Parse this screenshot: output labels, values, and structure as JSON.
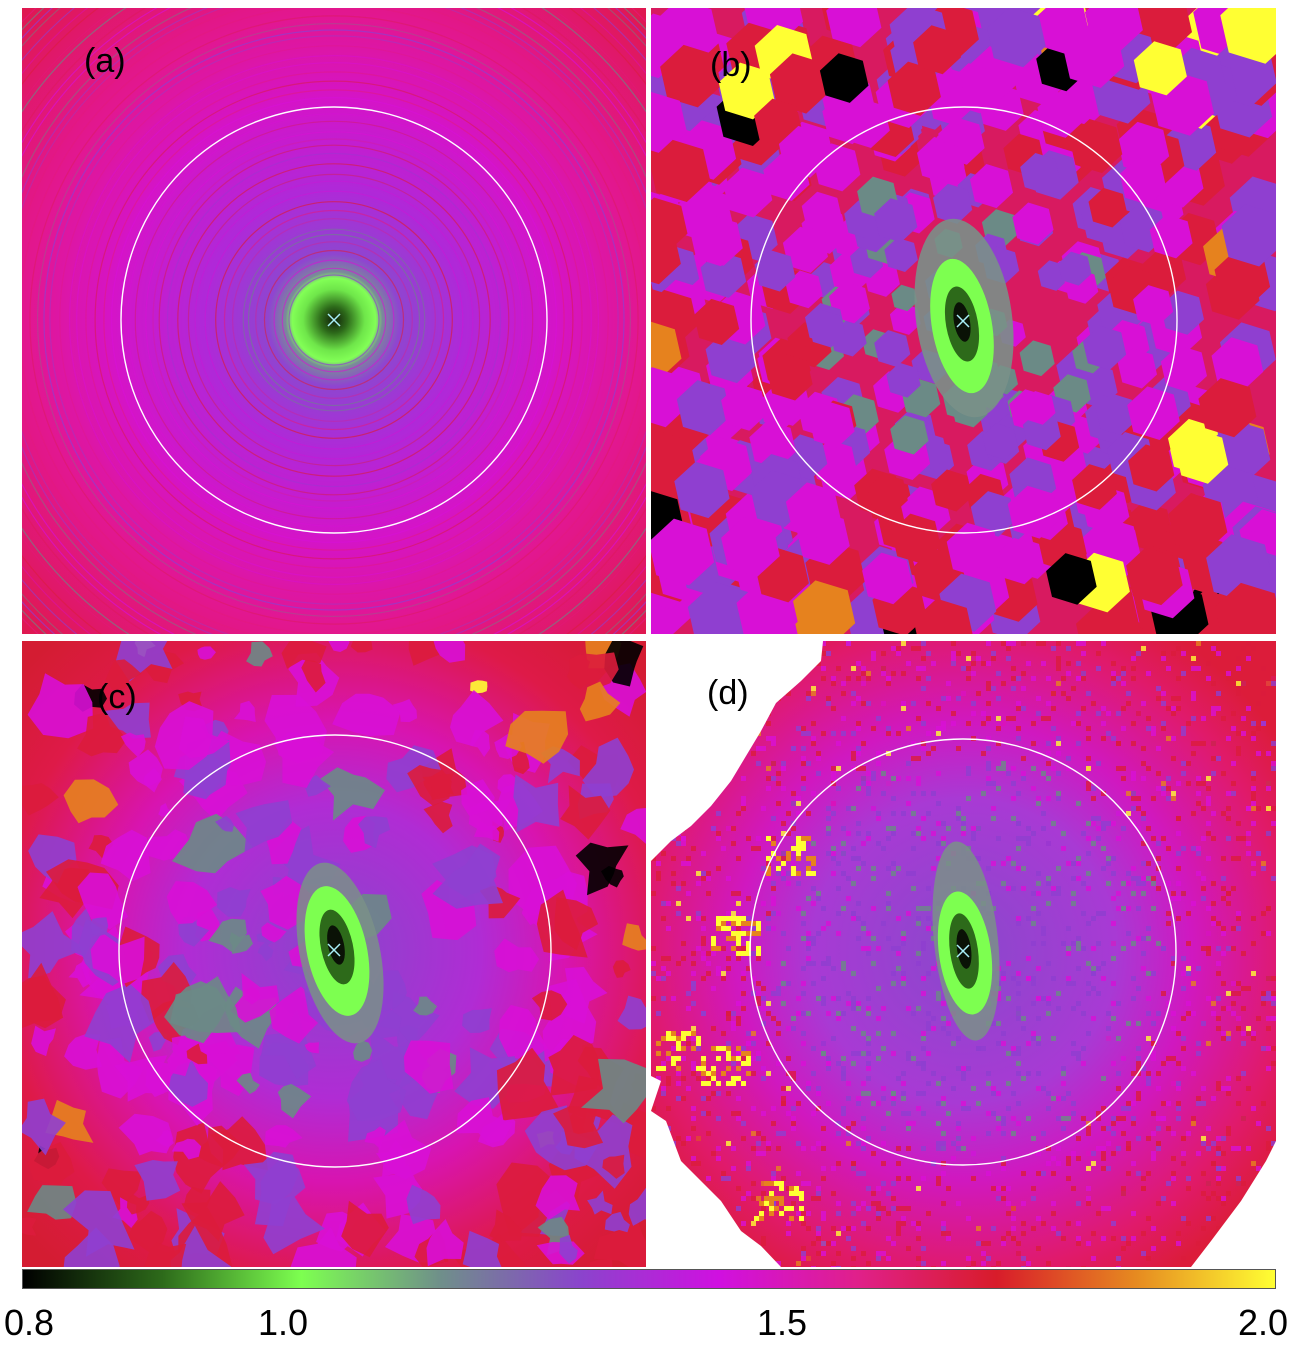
{
  "panels": [
    {
      "id": "a",
      "label": "(a)"
    },
    {
      "id": "b",
      "label": "(b)"
    },
    {
      "id": "c",
      "label": "(c)"
    },
    {
      "id": "d",
      "label": "(d)"
    }
  ],
  "colorbar": {
    "ticks": [
      "0.8",
      "1.0",
      "1.5",
      "2.0"
    ],
    "min": 0.8,
    "max": 2.0,
    "stops": [
      "#000000",
      "#2d6a1a",
      "#7dff50",
      "#6f8f8a",
      "#8a44cc",
      "#d010e0",
      "#e0208a",
      "#d81c2a",
      "#e68a20",
      "#ffff33"
    ]
  },
  "colors": {
    "background_ring": "#e3197f",
    "violet": "#8f3fd0",
    "magenta": "#d810d6",
    "red": "#db1c3c",
    "green": "#7dff50",
    "dark_green": "#1c3a10",
    "gray_green": "#6b8a86",
    "yellow": "#ffff33",
    "orange": "#e6821e",
    "black": "#000000"
  }
}
